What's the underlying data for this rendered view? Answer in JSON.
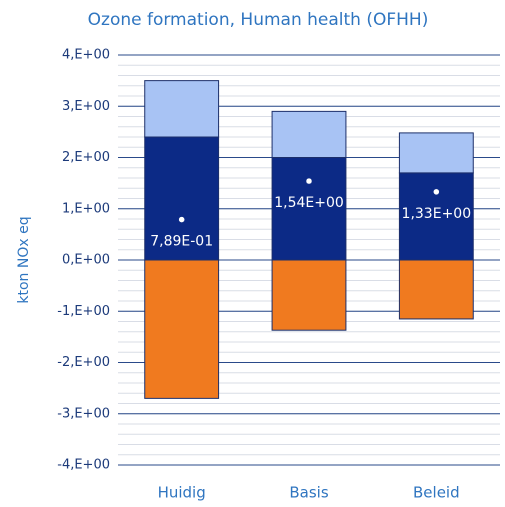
{
  "chart_data": {
    "type": "stacked_bar",
    "title": "Ozone formation, Human health (OFHH)",
    "y_label": "kton NOx eq",
    "categories": [
      "Huidig",
      "Basis",
      "Beleid"
    ],
    "series": [
      {
        "color": "#0c2a86",
        "values": [
          2.4,
          2.0,
          1.7
        ]
      },
      {
        "color": "#a8c3f4",
        "values": [
          1.1,
          0.9,
          0.78
        ]
      },
      {
        "color": "#f07a1f",
        "values": [
          -2.7,
          -1.37,
          -1.15
        ]
      }
    ],
    "markers": {
      "color": "#ffffff",
      "values": [
        0.789,
        1.54,
        1.33
      ],
      "value_labels": [
        "7,89E-01",
        "1,54E+00",
        "1,33E+00"
      ]
    },
    "ylim": [
      -4,
      4
    ],
    "yticks": [
      {
        "value": 4,
        "label": "4,E+00"
      },
      {
        "value": 3,
        "label": "3,E+00"
      },
      {
        "value": 2,
        "label": "2,E+00"
      },
      {
        "value": 1,
        "label": "1,E+00"
      },
      {
        "value": 0,
        "label": "0,E+00"
      },
      {
        "value": -1,
        "label": "-1,E+00"
      },
      {
        "value": -2,
        "label": "-2,E+00"
      },
      {
        "value": -3,
        "label": "-3,E+00"
      },
      {
        "value": -4,
        "label": "-4,E+00"
      }
    ],
    "grid": true,
    "minor_grid_step": 0.2
  }
}
